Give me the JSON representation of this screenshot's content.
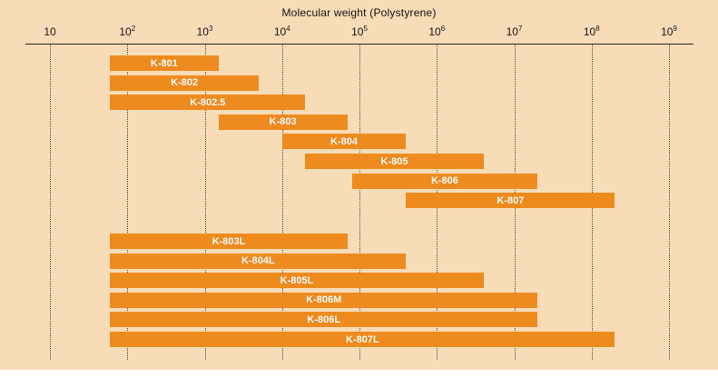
{
  "chart_data": {
    "type": "bar",
    "title": "Molecular weight (Polystyrene)",
    "orientation": "horizontal-range",
    "axis": {
      "scale": "log10",
      "label": "Molecular weight (Polystyrene)",
      "min_exponent": 1,
      "max_exponent": 9,
      "tick_exponents": [
        1,
        2,
        3,
        4,
        5,
        6,
        7,
        8,
        9
      ],
      "gridlines": "dotted-vertical"
    },
    "bars": [
      {
        "name": "K-801",
        "min": 60,
        "max": 1500,
        "group": 1
      },
      {
        "name": "K-802",
        "min": 60,
        "max": 5000,
        "group": 1
      },
      {
        "name": "K-802.5",
        "min": 60,
        "max": 20000,
        "group": 1
      },
      {
        "name": "K-803",
        "min": 1500,
        "max": 70000,
        "group": 1
      },
      {
        "name": "K-804",
        "min": 10000,
        "max": 400000,
        "group": 1
      },
      {
        "name": "K-805",
        "min": 20000,
        "max": 4000000,
        "group": 1
      },
      {
        "name": "K-806",
        "min": 80000,
        "max": 20000000,
        "group": 1
      },
      {
        "name": "K-807",
        "min": 400000,
        "max": 200000000,
        "group": 1
      },
      {
        "name": "K-803L",
        "min": 60,
        "max": 70000,
        "group": 2
      },
      {
        "name": "K-804L",
        "min": 60,
        "max": 400000,
        "group": 2
      },
      {
        "name": "K-805L",
        "min": 60,
        "max": 4000000,
        "group": 2
      },
      {
        "name": "K-806M",
        "min": 60,
        "max": 20000000,
        "group": 2
      },
      {
        "name": "K-806L",
        "min": 60,
        "max": 20000000,
        "group": 2
      },
      {
        "name": "K-807L",
        "min": 60,
        "max": 200000000,
        "group": 2
      }
    ],
    "legend": "none",
    "colors": {
      "background": "#f8dcb8",
      "bar": "#ee8b1e",
      "bar_label": "#ffffff",
      "axis": "#222222",
      "text": "#111111"
    }
  }
}
